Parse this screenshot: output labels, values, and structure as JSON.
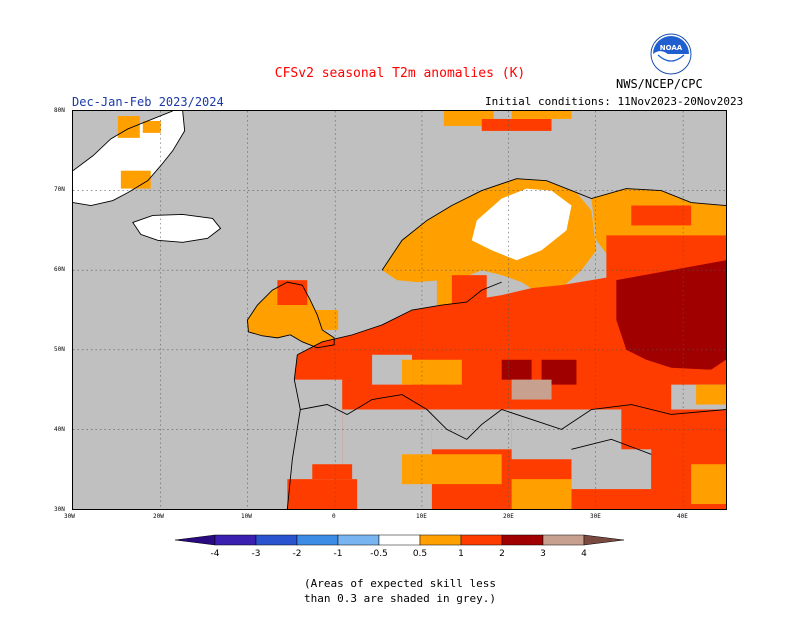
{
  "header": {
    "title": "CFSv2 seasonal T2m anomalies (K)",
    "season": "Dec-Jan-Feb 2023/2024",
    "initial_conditions": "Initial conditions: 11Nov2023-20Nov2023",
    "organization": "NWS/NCEP/CPC",
    "logo_text": "NOAA"
  },
  "map": {
    "region": "Europe",
    "lat_ticks": [
      "30N",
      "40N",
      "50N",
      "60N",
      "70N",
      "80N"
    ],
    "lon_ticks": [
      "30W",
      "20W",
      "10W",
      "0",
      "10E",
      "20E",
      "30E",
      "40E"
    ],
    "colors": {
      "ocean_low_skill": "#c0c0c0",
      "near_normal": "#ffffff",
      "anom_0_5_to_1": "#ffa000",
      "anom_1_to_2": "#ff3c00",
      "anom_2_to_3": "#a00000",
      "anom_3_to_4": "#c8a090"
    }
  },
  "legend": {
    "labels": [
      "-4",
      "-3",
      "-2",
      "-1",
      "-0.5",
      "0.5",
      "1",
      "2",
      "3",
      "4"
    ],
    "colors": [
      "#3b1fb0",
      "#2a53d0",
      "#3c8ce6",
      "#78b4f0",
      "#ffffff",
      "#ffa000",
      "#ff3c00",
      "#a00000",
      "#c8a090"
    ],
    "end_low_color": "#2a0a80",
    "end_high_color": "#7a4a40"
  },
  "footnote": {
    "line1": "(Areas of expected skill less",
    "line2": "than 0.3 are shaded in grey.)"
  }
}
